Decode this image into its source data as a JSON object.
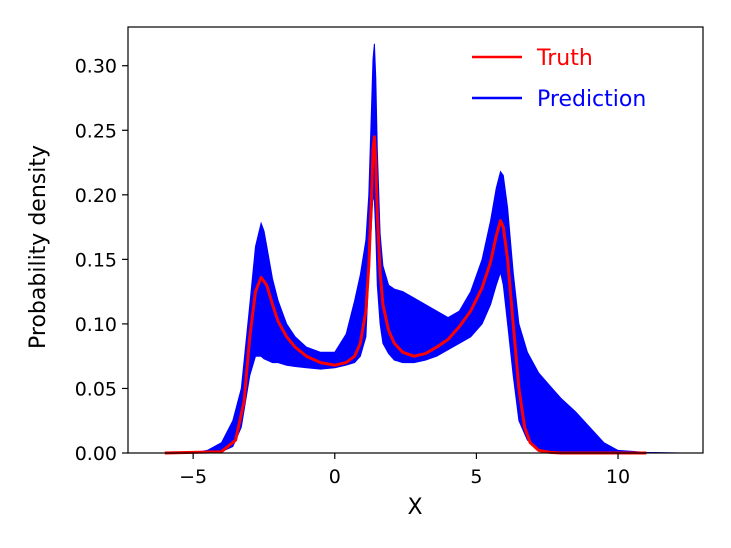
{
  "chart_data": {
    "type": "line",
    "title": "",
    "xlabel": "X",
    "ylabel": "Probability density",
    "xlim": [
      -7.3,
      13.0
    ],
    "ylim": [
      0.0,
      0.33
    ],
    "xticks": [
      -5,
      0,
      5,
      10
    ],
    "xtick_labels": [
      "−5",
      "0",
      "5",
      "10"
    ],
    "yticks": [
      0.0,
      0.05,
      0.1,
      0.15,
      0.2,
      0.25,
      0.3
    ],
    "ytick_labels": [
      "0.00",
      "0.05",
      "0.10",
      "0.15",
      "0.20",
      "0.25",
      "0.30"
    ],
    "grid": false,
    "legend": "top-right",
    "series": [
      {
        "name": "Truth",
        "color": "#ff0000",
        "x": [
          -6.0,
          -4.0,
          -3.5,
          -3.2,
          -3.0,
          -2.8,
          -2.6,
          -2.4,
          -2.2,
          -2.0,
          -1.7,
          -1.4,
          -1.0,
          -0.5,
          0.0,
          0.4,
          0.7,
          0.9,
          1.1,
          1.2,
          1.3,
          1.35,
          1.4,
          1.45,
          1.5,
          1.6,
          1.7,
          1.9,
          2.1,
          2.4,
          2.8,
          3.2,
          3.6,
          4.0,
          4.4,
          4.8,
          5.2,
          5.5,
          5.7,
          5.85,
          5.95,
          6.1,
          6.3,
          6.5,
          6.7,
          6.9,
          7.2,
          7.6,
          8.0,
          9.0,
          11.0
        ],
        "y": [
          0.0,
          0.001,
          0.01,
          0.04,
          0.09,
          0.125,
          0.136,
          0.13,
          0.115,
          0.102,
          0.09,
          0.082,
          0.075,
          0.07,
          0.068,
          0.07,
          0.075,
          0.085,
          0.11,
          0.145,
          0.2,
          0.235,
          0.245,
          0.225,
          0.185,
          0.14,
          0.115,
          0.095,
          0.085,
          0.078,
          0.075,
          0.077,
          0.082,
          0.088,
          0.098,
          0.11,
          0.128,
          0.148,
          0.168,
          0.18,
          0.175,
          0.15,
          0.1,
          0.05,
          0.02,
          0.008,
          0.002,
          0.0005,
          0.0,
          0.0,
          0.0
        ]
      },
      {
        "name": "Prediction",
        "color": "#0000ff",
        "x": [
          -6.8,
          -5.0,
          -4.5,
          -4.0,
          -3.6,
          -3.3,
          -3.0,
          -2.8,
          -2.6,
          -2.5,
          -2.4,
          -2.2,
          -2.0,
          -1.7,
          -1.4,
          -1.0,
          -0.5,
          0.0,
          0.4,
          0.7,
          0.9,
          1.1,
          1.2,
          1.3,
          1.35,
          1.4,
          1.45,
          1.5,
          1.6,
          1.7,
          1.9,
          2.1,
          2.4,
          2.8,
          3.2,
          3.6,
          4.0,
          4.4,
          4.8,
          5.2,
          5.5,
          5.7,
          5.85,
          5.95,
          6.1,
          6.3,
          6.5,
          6.8,
          7.2,
          7.6,
          8.0,
          8.5,
          9.0,
          9.5,
          10.0,
          11.0,
          12.2
        ],
        "y_upper": [
          0.0,
          0.0,
          0.002,
          0.008,
          0.025,
          0.05,
          0.115,
          0.16,
          0.178,
          0.172,
          0.16,
          0.135,
          0.118,
          0.1,
          0.09,
          0.082,
          0.078,
          0.078,
          0.092,
          0.118,
          0.138,
          0.165,
          0.2,
          0.27,
          0.305,
          0.317,
          0.29,
          0.235,
          0.17,
          0.145,
          0.13,
          0.127,
          0.125,
          0.12,
          0.115,
          0.11,
          0.105,
          0.11,
          0.125,
          0.15,
          0.18,
          0.205,
          0.218,
          0.215,
          0.19,
          0.14,
          0.1,
          0.078,
          0.062,
          0.052,
          0.042,
          0.032,
          0.02,
          0.008,
          0.002,
          0.0005,
          0.0
        ],
        "y_lower": [
          0.0,
          0.0,
          0.0,
          0.001,
          0.005,
          0.02,
          0.06,
          0.075,
          0.075,
          0.073,
          0.072,
          0.07,
          0.07,
          0.068,
          0.067,
          0.066,
          0.065,
          0.066,
          0.068,
          0.07,
          0.075,
          0.09,
          0.14,
          0.18,
          0.2,
          0.195,
          0.17,
          0.13,
          0.1,
          0.085,
          0.077,
          0.072,
          0.07,
          0.07,
          0.072,
          0.075,
          0.08,
          0.085,
          0.09,
          0.1,
          0.115,
          0.13,
          0.14,
          0.13,
          0.1,
          0.06,
          0.025,
          0.01,
          0.003,
          0.001,
          0.0,
          0.0,
          0.0,
          0.0,
          0.0,
          0.0,
          0.0
        ]
      }
    ]
  }
}
